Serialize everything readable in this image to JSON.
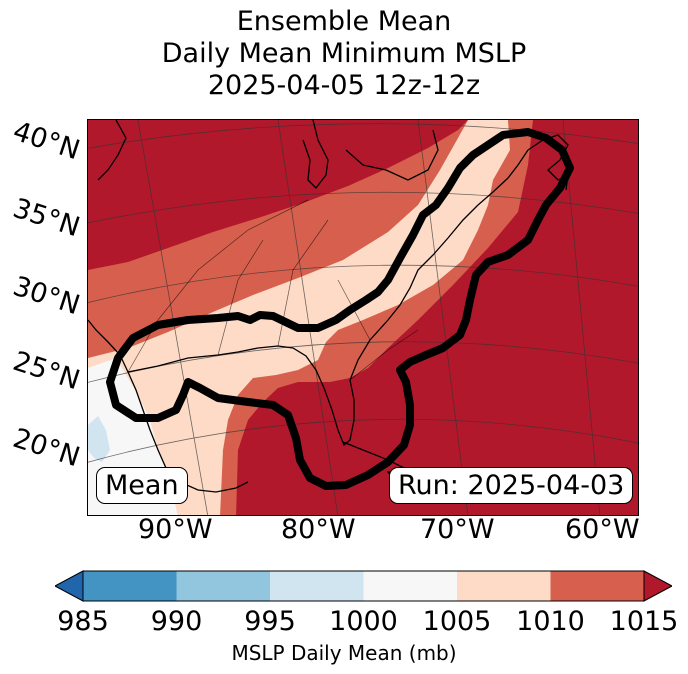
{
  "title": {
    "line1": "Ensemble Mean",
    "line2": "Daily Mean Minimum MSLP",
    "line3": "2025-04-05 12z-12z"
  },
  "map": {
    "lat_labels": [
      "40°N",
      "35°N",
      "30°N",
      "25°N",
      "20°N"
    ],
    "lon_labels": [
      "90°W",
      "80°W",
      "70°W",
      "60°W"
    ],
    "label_left": "Mean",
    "label_right": "Run: 2025-04-03",
    "contour_color": "#000000"
  },
  "colorbar": {
    "ticks": [
      "985",
      "990",
      "995",
      "1000",
      "1005",
      "1010",
      "1015"
    ],
    "label": "MSLP Daily Mean (mb)",
    "colors": [
      "#2166ac",
      "#4393c3",
      "#92c5de",
      "#d1e5f0",
      "#f7f7f7",
      "#fddbc7",
      "#d6604d",
      "#b2182b"
    ]
  }
}
